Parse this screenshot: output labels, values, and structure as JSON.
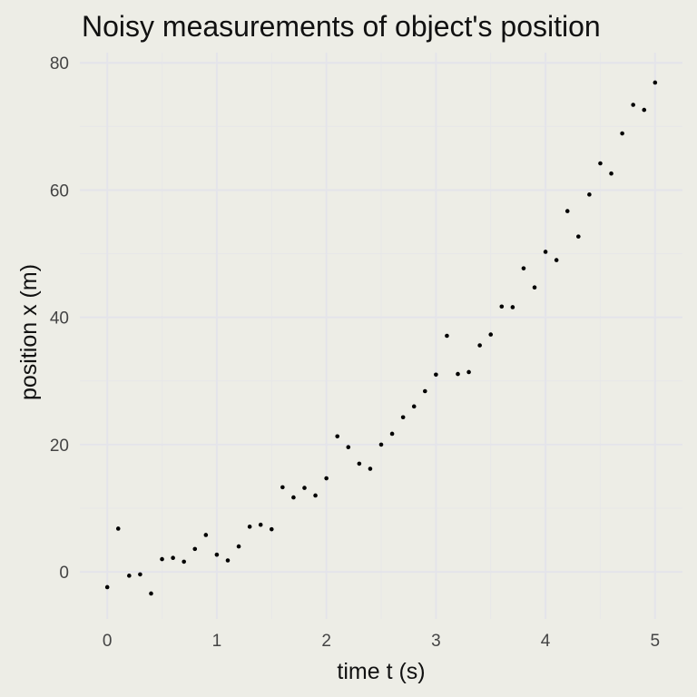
{
  "chart_data": {
    "type": "scatter",
    "title": "Noisy measurements of object's position",
    "xlabel": "time t (s)",
    "ylabel": "position x (m)",
    "xlim": [
      -0.25,
      5.25
    ],
    "ylim": [
      -7.4,
      81.6
    ],
    "x_ticks": [
      0,
      1,
      2,
      3,
      4,
      5
    ],
    "y_ticks": [
      0,
      20,
      40,
      60,
      80
    ],
    "x_tick_labels": [
      "0",
      "1",
      "2",
      "3",
      "4",
      "5"
    ],
    "y_tick_labels": [
      "0",
      "20",
      "40",
      "60",
      "80"
    ],
    "grid": true,
    "legend": "none",
    "point_color": "#000000",
    "background_color": "#edede6",
    "points": [
      {
        "x": 0.0,
        "y": -2.4
      },
      {
        "x": 0.1,
        "y": 6.8
      },
      {
        "x": 0.2,
        "y": -0.6
      },
      {
        "x": 0.3,
        "y": -0.4
      },
      {
        "x": 0.4,
        "y": -3.4
      },
      {
        "x": 0.5,
        "y": 2.0
      },
      {
        "x": 0.6,
        "y": 2.2
      },
      {
        "x": 0.7,
        "y": 1.6
      },
      {
        "x": 0.8,
        "y": 3.6
      },
      {
        "x": 0.9,
        "y": 5.8
      },
      {
        "x": 1.0,
        "y": 2.7
      },
      {
        "x": 1.1,
        "y": 1.8
      },
      {
        "x": 1.2,
        "y": 4.0
      },
      {
        "x": 1.3,
        "y": 7.1
      },
      {
        "x": 1.4,
        "y": 7.4
      },
      {
        "x": 1.5,
        "y": 6.7
      },
      {
        "x": 1.6,
        "y": 13.3
      },
      {
        "x": 1.7,
        "y": 11.7
      },
      {
        "x": 1.8,
        "y": 13.2
      },
      {
        "x": 1.9,
        "y": 12.0
      },
      {
        "x": 2.0,
        "y": 14.7
      },
      {
        "x": 2.1,
        "y": 21.3
      },
      {
        "x": 2.2,
        "y": 19.6
      },
      {
        "x": 2.3,
        "y": 17.0
      },
      {
        "x": 2.4,
        "y": 16.2
      },
      {
        "x": 2.5,
        "y": 20.0
      },
      {
        "x": 2.6,
        "y": 21.7
      },
      {
        "x": 2.7,
        "y": 24.3
      },
      {
        "x": 2.8,
        "y": 26.0
      },
      {
        "x": 2.9,
        "y": 28.4
      },
      {
        "x": 3.0,
        "y": 31.0
      },
      {
        "x": 3.1,
        "y": 37.1
      },
      {
        "x": 3.2,
        "y": 31.1
      },
      {
        "x": 3.3,
        "y": 31.4
      },
      {
        "x": 3.4,
        "y": 35.6
      },
      {
        "x": 3.5,
        "y": 37.3
      },
      {
        "x": 3.6,
        "y": 41.7
      },
      {
        "x": 3.7,
        "y": 41.6
      },
      {
        "x": 3.8,
        "y": 47.7
      },
      {
        "x": 3.9,
        "y": 44.7
      },
      {
        "x": 4.0,
        "y": 50.3
      },
      {
        "x": 4.1,
        "y": 49.0
      },
      {
        "x": 4.2,
        "y": 56.7
      },
      {
        "x": 4.3,
        "y": 52.7
      },
      {
        "x": 4.4,
        "y": 59.3
      },
      {
        "x": 4.5,
        "y": 64.2
      },
      {
        "x": 4.6,
        "y": 62.6
      },
      {
        "x": 4.7,
        "y": 68.9
      },
      {
        "x": 4.8,
        "y": 73.4
      },
      {
        "x": 4.9,
        "y": 72.6
      },
      {
        "x": 5.0,
        "y": 76.9
      }
    ]
  }
}
